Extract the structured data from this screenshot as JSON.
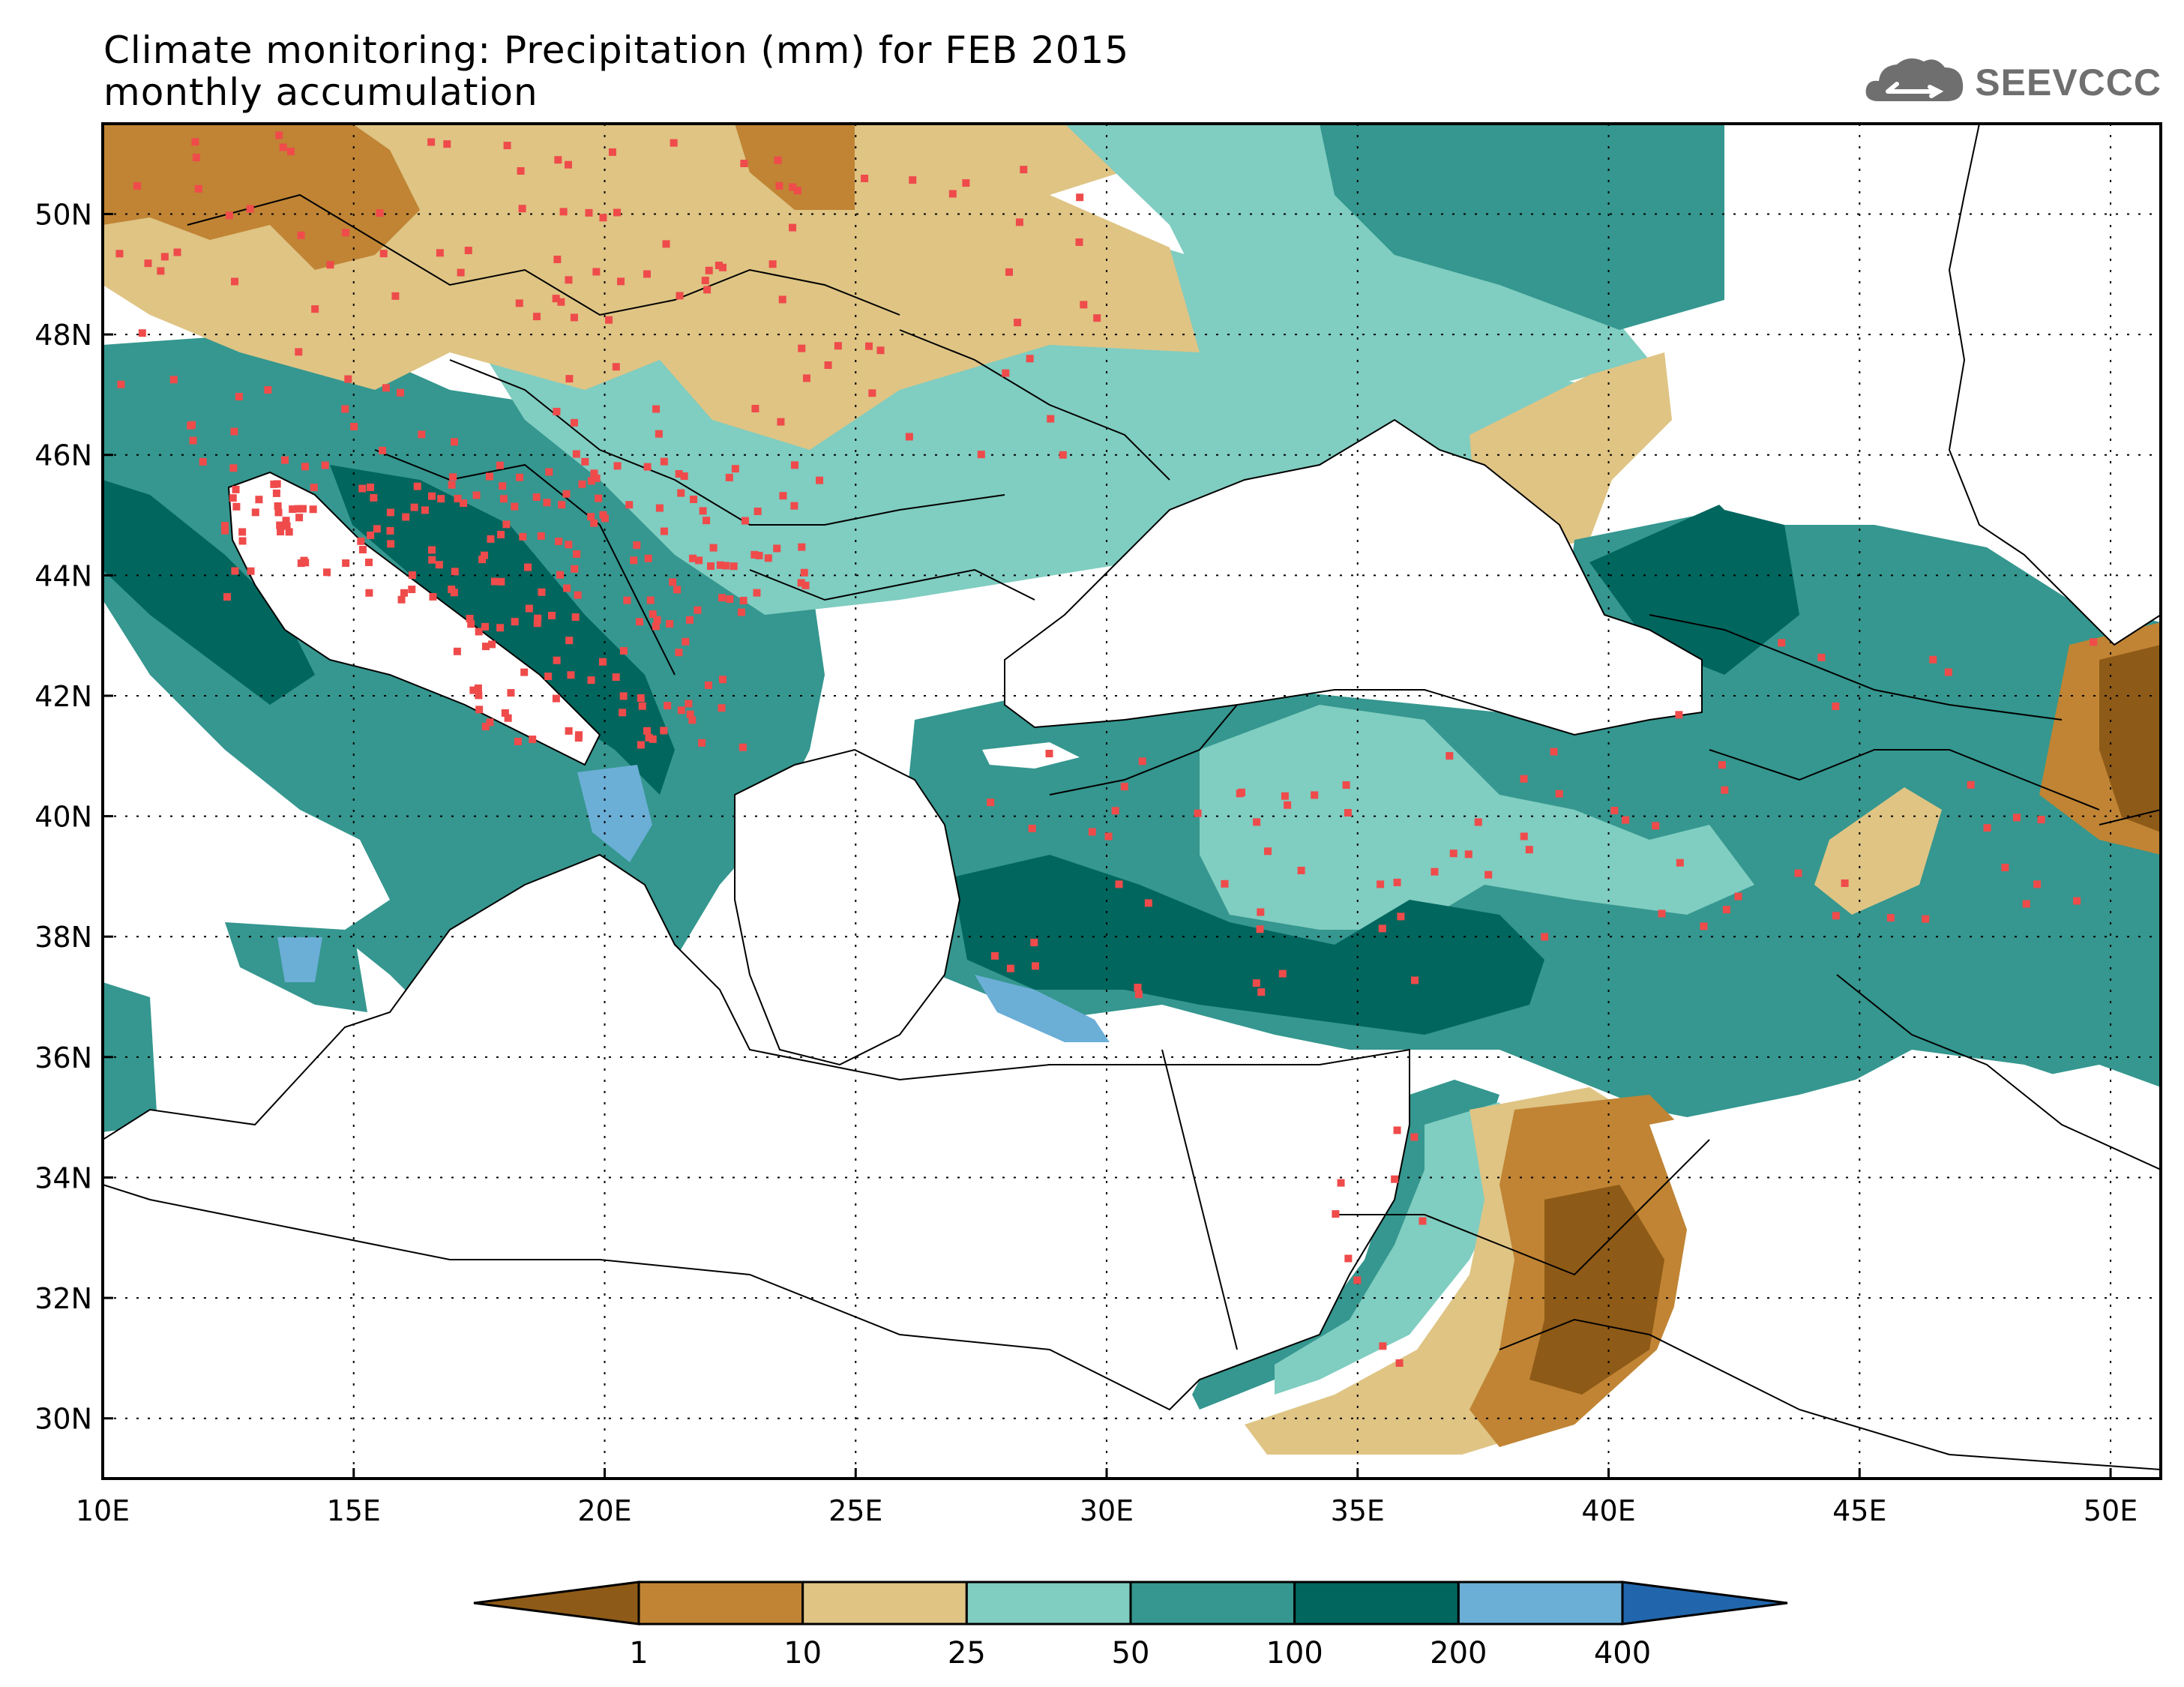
{
  "title": {
    "line1": "Climate monitoring: Precipitation (mm) for FEB 2015",
    "line2": "monthly accumulation"
  },
  "logo": {
    "text": "SEEVCCC",
    "icon": "cloud-icon"
  },
  "map": {
    "lon_range": [
      10,
      51
    ],
    "lat_range": [
      29,
      51.5
    ],
    "lon_ticks": [
      "10E",
      "15E",
      "20E",
      "25E",
      "30E",
      "35E",
      "40E",
      "45E",
      "50E"
    ],
    "lat_ticks": [
      "30N",
      "32N",
      "34N",
      "36N",
      "38N",
      "40N",
      "42N",
      "44N",
      "46N",
      "48N",
      "50N"
    ],
    "gridlines": "dotted",
    "station_color": "#ef4b4b"
  },
  "colorbar": {
    "thresholds": [
      "1",
      "10",
      "25",
      "50",
      "100",
      "200",
      "400"
    ],
    "colors": [
      "#8e5a17",
      "#c08434",
      "#dfc484",
      "#80cdc1",
      "#35978f",
      "#01665e",
      "#6baed6",
      "#2166ac"
    ],
    "extend": "both",
    "units": "mm"
  }
}
